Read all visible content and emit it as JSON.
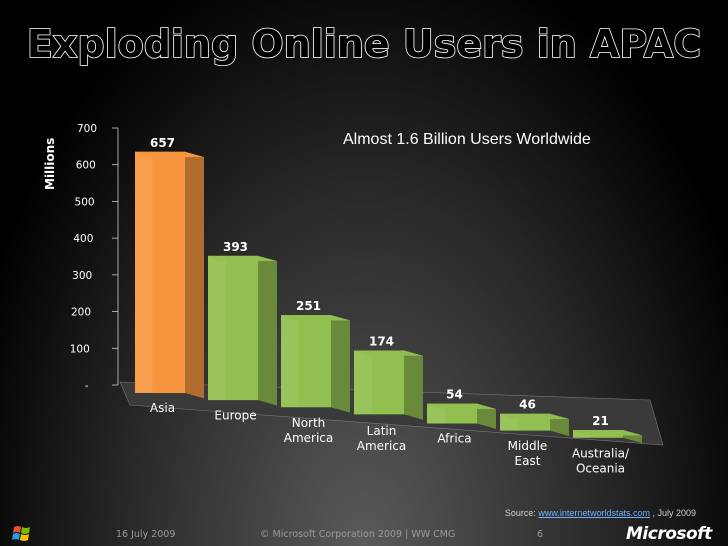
{
  "title": "Exploding Online Users in APAC",
  "subtitle": "Almost 1.6 Billion Users Worldwide",
  "source": {
    "prefix": "Source: ",
    "link_text": "www.internetworldstats.com",
    "suffix": " , July 2009"
  },
  "footer": {
    "date": "16 July 2009",
    "copyright": "© Microsoft Corporation 2009 | WW CMG",
    "page": "6",
    "brand": "Microsoft"
  },
  "colors": {
    "highlight": "#F7963E",
    "bar": "#92C050",
    "axis": "#FFFFFF"
  },
  "chart_data": {
    "type": "bar",
    "ylabel": "Millions",
    "ylim": [
      0,
      700
    ],
    "yticks": [
      {
        "value": 0,
        "label": "-"
      },
      {
        "value": 100,
        "label": "100"
      },
      {
        "value": 200,
        "label": "200"
      },
      {
        "value": 300,
        "label": "300"
      },
      {
        "value": 400,
        "label": "400"
      },
      {
        "value": 500,
        "label": "500"
      },
      {
        "value": 600,
        "label": "600"
      },
      {
        "value": 700,
        "label": "700"
      }
    ],
    "categories": [
      {
        "lines": [
          "Asia"
        ]
      },
      {
        "lines": [
          "Europe"
        ]
      },
      {
        "lines": [
          "North",
          "America"
        ]
      },
      {
        "lines": [
          "Latin",
          "America"
        ]
      },
      {
        "lines": [
          "Africa"
        ]
      },
      {
        "lines": [
          "Middle",
          "East"
        ]
      },
      {
        "lines": [
          "Australia/",
          "Oceania"
        ]
      }
    ],
    "values": [
      657,
      393,
      251,
      174,
      54,
      46,
      21
    ],
    "data_labels": [
      "657",
      "393",
      "251",
      "174",
      "54",
      "46",
      "21"
    ],
    "highlight_index": 0,
    "grid": false,
    "style": "3d-perspective"
  }
}
